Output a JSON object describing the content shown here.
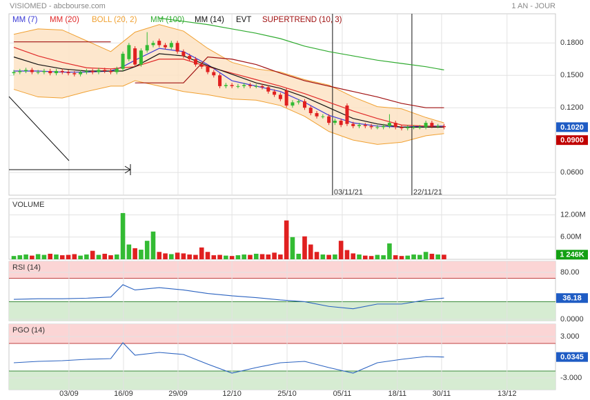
{
  "header": {
    "title": "VISIOMED - abcbourse.com",
    "period": "1 AN - JOUR"
  },
  "chart_data": [
    {
      "type": "candlestick",
      "days": [
        0,
        1,
        2,
        3,
        4,
        5,
        6,
        7,
        8,
        9,
        10,
        11,
        12,
        13,
        14,
        15,
        16,
        17,
        18,
        19,
        20,
        21,
        22,
        23,
        24,
        25,
        26,
        27,
        28,
        29,
        30,
        31,
        32,
        33,
        34,
        35,
        36,
        37,
        38,
        39,
        40,
        41,
        42,
        43,
        44,
        45,
        46,
        47,
        48,
        49,
        50,
        51,
        52,
        53,
        54,
        55,
        56,
        57,
        58,
        59,
        60,
        61,
        62,
        63,
        64,
        65,
        66,
        67,
        68,
        69,
        70,
        71
      ],
      "open": [
        0.152,
        0.153,
        0.154,
        0.155,
        0.153,
        0.153,
        0.154,
        0.152,
        0.154,
        0.153,
        0.152,
        0.151,
        0.153,
        0.154,
        0.153,
        0.155,
        0.154,
        0.153,
        0.156,
        0.165,
        0.175,
        0.16,
        0.173,
        0.178,
        0.182,
        0.178,
        0.176,
        0.18,
        0.172,
        0.168,
        0.165,
        0.16,
        0.158,
        0.153,
        0.15,
        0.14,
        0.141,
        0.14,
        0.14,
        0.141,
        0.14,
        0.14,
        0.139,
        0.135,
        0.132,
        0.136,
        0.122,
        0.125,
        0.126,
        0.12,
        0.115,
        0.112,
        0.112,
        0.106,
        0.108,
        0.122,
        0.105,
        0.103,
        0.104,
        0.103,
        0.102,
        0.102,
        0.103,
        0.106,
        0.102,
        0.101,
        0.102,
        0.102,
        0.102,
        0.106,
        0.103,
        0.103
      ],
      "high": [
        0.155,
        0.156,
        0.157,
        0.157,
        0.155,
        0.156,
        0.156,
        0.156,
        0.156,
        0.155,
        0.154,
        0.155,
        0.156,
        0.156,
        0.157,
        0.157,
        0.156,
        0.158,
        0.172,
        0.18,
        0.177,
        0.175,
        0.19,
        0.182,
        0.184,
        0.18,
        0.182,
        0.182,
        0.174,
        0.17,
        0.167,
        0.162,
        0.16,
        0.155,
        0.152,
        0.143,
        0.143,
        0.142,
        0.143,
        0.143,
        0.142,
        0.142,
        0.141,
        0.137,
        0.134,
        0.138,
        0.127,
        0.128,
        0.128,
        0.122,
        0.117,
        0.114,
        0.114,
        0.11,
        0.11,
        0.124,
        0.107,
        0.106,
        0.106,
        0.105,
        0.104,
        0.105,
        0.114,
        0.108,
        0.104,
        0.104,
        0.104,
        0.104,
        0.108,
        0.108,
        0.105,
        0.105
      ],
      "low": [
        0.15,
        0.151,
        0.152,
        0.151,
        0.151,
        0.151,
        0.15,
        0.15,
        0.151,
        0.15,
        0.149,
        0.149,
        0.151,
        0.151,
        0.151,
        0.152,
        0.151,
        0.151,
        0.154,
        0.163,
        0.158,
        0.158,
        0.171,
        0.176,
        0.176,
        0.174,
        0.174,
        0.17,
        0.166,
        0.163,
        0.158,
        0.156,
        0.151,
        0.148,
        0.138,
        0.138,
        0.138,
        0.138,
        0.138,
        0.138,
        0.138,
        0.137,
        0.133,
        0.13,
        0.126,
        0.12,
        0.12,
        0.123,
        0.118,
        0.113,
        0.11,
        0.11,
        0.104,
        0.104,
        0.102,
        0.103,
        0.101,
        0.101,
        0.101,
        0.1,
        0.1,
        0.1,
        0.101,
        0.1,
        0.099,
        0.099,
        0.1,
        0.1,
        0.1,
        0.101,
        0.101,
        0.1
      ],
      "close": [
        0.153,
        0.154,
        0.155,
        0.153,
        0.153,
        0.154,
        0.152,
        0.154,
        0.153,
        0.152,
        0.151,
        0.153,
        0.154,
        0.153,
        0.155,
        0.154,
        0.153,
        0.156,
        0.17,
        0.178,
        0.16,
        0.173,
        0.178,
        0.18,
        0.178,
        0.176,
        0.18,
        0.172,
        0.168,
        0.165,
        0.16,
        0.158,
        0.153,
        0.15,
        0.14,
        0.141,
        0.14,
        0.14,
        0.141,
        0.14,
        0.14,
        0.139,
        0.135,
        0.132,
        0.128,
        0.122,
        0.125,
        0.126,
        0.12,
        0.115,
        0.112,
        0.112,
        0.106,
        0.108,
        0.104,
        0.105,
        0.103,
        0.104,
        0.103,
        0.102,
        0.102,
        0.103,
        0.106,
        0.102,
        0.101,
        0.102,
        0.102,
        0.102,
        0.106,
        0.103,
        0.103,
        0.102
      ],
      "up_color": "#33bb33",
      "down_color": "#e02020",
      "line_x": [
        0,
        4,
        8,
        12,
        16,
        18,
        20,
        24,
        28,
        32,
        36,
        40,
        44,
        48,
        52,
        56,
        60,
        64,
        68,
        71
      ],
      "series": [
        {
          "name": "MM (7)",
          "color": "#3a3ad6",
          "values": [
            0.154,
            0.154,
            0.153,
            0.153,
            0.154,
            0.158,
            0.164,
            0.175,
            0.172,
            0.16,
            0.145,
            0.14,
            0.135,
            0.125,
            0.113,
            0.106,
            0.103,
            0.102,
            0.103,
            0.103
          ]
        },
        {
          "name": "MM (20)",
          "color": "#e02828",
          "values": [
            0.176,
            0.168,
            0.162,
            0.157,
            0.156,
            0.157,
            0.158,
            0.165,
            0.165,
            0.158,
            0.152,
            0.146,
            0.14,
            0.133,
            0.125,
            0.117,
            0.11,
            0.104,
            0.103,
            0.102
          ]
        },
        {
          "name": "MM (100)",
          "color": "#2eaa2e",
          "values": [
            null,
            null,
            null,
            null,
            null,
            null,
            null,
            0.203,
            0.2,
            0.197,
            0.193,
            0.189,
            0.184,
            0.177,
            0.172,
            0.168,
            0.164,
            0.161,
            0.158,
            0.155
          ]
        },
        {
          "name": "MM (14)",
          "color": "#111111",
          "values": [
            0.167,
            0.16,
            0.156,
            0.154,
            0.154,
            0.154,
            0.158,
            0.17,
            0.168,
            0.159,
            0.151,
            0.143,
            0.138,
            0.13,
            0.12,
            0.11,
            0.105,
            0.102,
            0.102,
            0.102
          ]
        },
        {
          "name": "SUPERTREND (10, 3)",
          "color": "#a01010",
          "values": [
            0.181,
            0.181,
            0.181,
            0.181,
            0.181,
            null,
            0.143,
            0.143,
            0.143,
            0.167,
            0.165,
            0.16,
            0.152,
            0.145,
            0.14,
            0.135,
            0.13,
            0.124,
            0.12,
            0.12
          ]
        }
      ],
      "band": {
        "name": "BOLL (20, 2)",
        "color": "#f0a030",
        "fill": "#fde3c4",
        "upper": [
          0.188,
          0.193,
          0.192,
          0.182,
          0.172,
          0.181,
          0.19,
          0.197,
          0.191,
          0.175,
          0.162,
          0.156,
          0.153,
          0.146,
          0.141,
          0.13,
          0.121,
          0.119,
          0.111,
          0.106
        ],
        "lower": [
          0.137,
          0.13,
          0.129,
          0.135,
          0.14,
          0.14,
          0.145,
          0.14,
          0.135,
          0.132,
          0.128,
          0.127,
          0.122,
          0.112,
          0.098,
          0.09,
          0.086,
          0.088,
          0.094,
          0.096
        ]
      },
      "event_name": "EVT",
      "events": [
        {
          "x": 52.6,
          "label": "03/11/21"
        },
        {
          "x": 65.7,
          "label": "22/11/21"
        }
      ],
      "ylim": [
        0.039,
        0.207
      ],
      "yticks": [
        {
          "value": 0.06,
          "label": "0.0600"
        },
        {
          "value": 0.12,
          "label": "0.1200"
        },
        {
          "value": 0.15,
          "label": "0.1500"
        },
        {
          "value": 0.18,
          "label": "0.1800"
        }
      ],
      "price_labels": [
        {
          "value": 0.09,
          "label": "0.0900",
          "color": "#c00000"
        },
        {
          "value": 0.102,
          "label": "0.1020",
          "color": "#1f5cc4"
        }
      ]
    },
    {
      "type": "bar",
      "title": "VOLUME",
      "color": "#13a013",
      "values": [
        900000,
        1100000,
        1300000,
        1000000,
        1400000,
        1200000,
        1500000,
        1300000,
        1100000,
        1200000,
        1400000,
        1000000,
        1300000,
        2300000,
        1200000,
        1500000,
        1100000,
        1300000,
        12500000,
        4000000,
        3000000,
        2600000,
        5000000,
        7500000,
        2000000,
        1600000,
        1400000,
        1800000,
        1600000,
        1300000,
        1200000,
        3200000,
        2000000,
        1100000,
        1200000,
        1000000,
        900000,
        1100000,
        1300000,
        1200000,
        1500000,
        1400000,
        1300000,
        1800000,
        1300000,
        10500000,
        6000000,
        1500000,
        6200000,
        4000000,
        2000000,
        1300000,
        1200000,
        1300000,
        5000000,
        2500000,
        1600000,
        1300000,
        1000000,
        900000,
        1200000,
        1100000,
        4300000,
        1100000,
        900000,
        1000000,
        1300000,
        1200000,
        2000000,
        1500000,
        1300000,
        1246000
      ],
      "ylim": [
        0,
        16400000
      ],
      "yticks": [
        {
          "value": 6000000,
          "label": "6.00M"
        },
        {
          "value": 12000000,
          "label": "12.00M"
        }
      ],
      "last_label": {
        "value": 1246000,
        "label": "1 246K"
      }
    },
    {
      "type": "line",
      "title": "RSI (14)",
      "color": "#2a62c0",
      "x": [
        0,
        4,
        8,
        12,
        16,
        18,
        20,
        24,
        28,
        32,
        36,
        40,
        44,
        48,
        52,
        56,
        60,
        64,
        68,
        71
      ],
      "values": [
        34,
        35,
        35,
        36,
        38,
        59,
        50,
        54,
        50,
        44,
        40,
        37,
        33,
        30,
        22,
        18,
        26,
        26,
        33,
        36.18
      ],
      "ylim": [
        -2.4,
        98.8
      ],
      "yticks": [
        {
          "value": 0,
          "label": "0.0000"
        },
        {
          "value": 80,
          "label": "80.00"
        }
      ],
      "zones": [
        30,
        70
      ]
    },
    {
      "type": "line",
      "title": "PGO (14)",
      "color": "#2a62c0",
      "x": [
        0,
        4,
        8,
        12,
        16,
        18,
        20,
        24,
        28,
        32,
        36,
        40,
        44,
        48,
        52,
        56,
        60,
        64,
        68,
        71
      ],
      "values": [
        -0.8,
        -0.6,
        -0.5,
        -0.3,
        -0.2,
        2.1,
        0.3,
        0.7,
        0.4,
        -1.0,
        -2.3,
        -1.5,
        -0.8,
        -0.6,
        -1.5,
        -2.3,
        -0.8,
        -0.3,
        0.1,
        0.0345
      ],
      "ylim": [
        -4.7,
        4.8
      ],
      "yticks": [
        {
          "value": -3,
          "label": "-3.000"
        },
        {
          "value": 3,
          "label": "3.000"
        }
      ],
      "zones": [
        -2,
        2
      ],
      "xlim": [
        -0.8,
        89.4
      ],
      "xticks": [
        {
          "value": 9.1,
          "label": "03/09"
        },
        {
          "value": 18.1,
          "label": "16/09"
        },
        {
          "value": 27.1,
          "label": "29/09"
        },
        {
          "value": 36,
          "label": "12/10"
        },
        {
          "value": 45.1,
          "label": "25/10"
        },
        {
          "value": 54.2,
          "label": "05/11"
        },
        {
          "value": 63.3,
          "label": "18/11"
        },
        {
          "value": 70.6,
          "label": "30/11"
        },
        {
          "value": 81.4,
          "label": "13/12"
        }
      ]
    }
  ]
}
